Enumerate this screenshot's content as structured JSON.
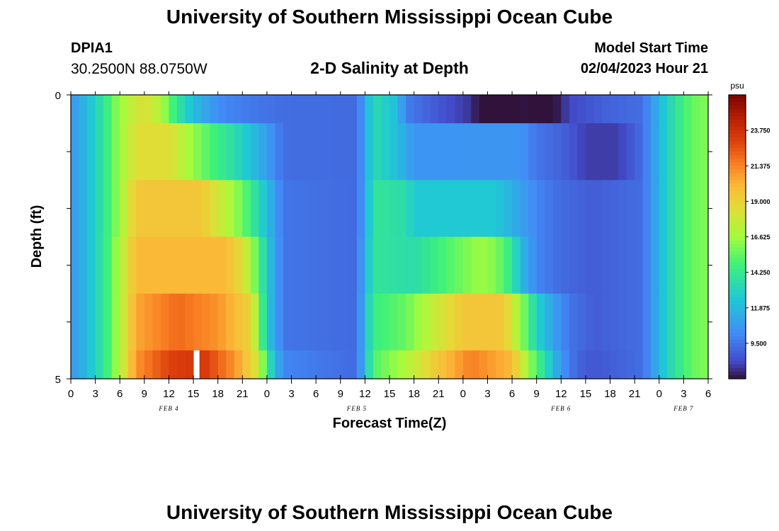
{
  "header": {
    "title": "University of Southern Mississippi Ocean Cube",
    "station_id": "DPIA1",
    "coordinates": "30.2500N  88.0750W",
    "chart_title": "2-D Salinity at Depth",
    "model_start_label": "Model Start Time",
    "model_start_value": "02/04/2023 Hour 21"
  },
  "footer": {
    "title": "University of Southern Mississippi Ocean Cube"
  },
  "chart_data": {
    "type": "heatmap",
    "title": "2-D Salinity at Depth",
    "xlabel": "Forecast Time(Z)",
    "ylabel": "Depth (ft)",
    "x_tick_labels": [
      "0",
      "3",
      "6",
      "9",
      "12",
      "15",
      "18",
      "21",
      "0",
      "3",
      "6",
      "9",
      "12",
      "15",
      "18",
      "21",
      "0",
      "3",
      "6",
      "9",
      "12",
      "15",
      "18",
      "21",
      "0",
      "3",
      "6"
    ],
    "x_hours": [
      0,
      3,
      6,
      9,
      12,
      15,
      18,
      21,
      24,
      27,
      30,
      33,
      36,
      39,
      42,
      45,
      48,
      51,
      54,
      57,
      60,
      63,
      66,
      69,
      72,
      75,
      78
    ],
    "xlim_hours": [
      0,
      78
    ],
    "date_labels": [
      {
        "label": "FEB 4",
        "hour": 12
      },
      {
        "label": "FEB 5",
        "hour": 35
      },
      {
        "label": "FEB 6",
        "hour": 60
      },
      {
        "label": "FEB 7",
        "hour": 75
      }
    ],
    "y_tick_labels": [
      "0",
      "5"
    ],
    "ylim": [
      0,
      5
    ],
    "depth_rows": [
      {
        "depth_range": [
          0,
          0.5
        ],
        "salinity": [
          {
            "h": 0,
            "v": 10.5
          },
          {
            "h": 2,
            "v": 12
          },
          {
            "h": 4,
            "v": 14
          },
          {
            "h": 6,
            "v": 16.5
          },
          {
            "h": 9,
            "v": 18.5
          },
          {
            "h": 11,
            "v": 17
          },
          {
            "h": 13,
            "v": 14
          },
          {
            "h": 15,
            "v": 12
          },
          {
            "h": 18,
            "v": 10.2
          },
          {
            "h": 22,
            "v": 9.6
          },
          {
            "h": 26,
            "v": 9.3
          },
          {
            "h": 35,
            "v": 9.2
          },
          {
            "h": 36,
            "v": 11
          },
          {
            "h": 37,
            "v": 13.5
          },
          {
            "h": 40,
            "v": 12
          },
          {
            "h": 41,
            "v": 9.8
          },
          {
            "h": 45,
            "v": 8.6
          },
          {
            "h": 49,
            "v": 7.8
          },
          {
            "h": 51,
            "v": 6.3
          },
          {
            "h": 52,
            "v": 5.8
          },
          {
            "h": 53,
            "v": 6.5
          },
          {
            "h": 55,
            "v": 7.2
          },
          {
            "h": 59,
            "v": 7
          },
          {
            "h": 61,
            "v": 8.2
          },
          {
            "h": 66,
            "v": 9
          },
          {
            "h": 70,
            "v": 9.3
          },
          {
            "h": 71,
            "v": 10.5
          },
          {
            "h": 73,
            "v": 13
          },
          {
            "h": 76,
            "v": 15.5
          },
          {
            "h": 78,
            "v": 16
          }
        ]
      },
      {
        "depth_range": [
          0.5,
          1.5
        ],
        "salinity": [
          {
            "h": 0,
            "v": 10.5
          },
          {
            "h": 2,
            "v": 12
          },
          {
            "h": 4,
            "v": 14
          },
          {
            "h": 6,
            "v": 16.5
          },
          {
            "h": 8,
            "v": 18.5
          },
          {
            "h": 12,
            "v": 18.5
          },
          {
            "h": 14,
            "v": 17
          },
          {
            "h": 17,
            "v": 15
          },
          {
            "h": 20,
            "v": 13.5
          },
          {
            "h": 23,
            "v": 11.5
          },
          {
            "h": 26,
            "v": 9.3
          },
          {
            "h": 35,
            "v": 9.2
          },
          {
            "h": 36,
            "v": 11
          },
          {
            "h": 37,
            "v": 13.5
          },
          {
            "h": 40,
            "v": 12
          },
          {
            "h": 42,
            "v": 10.5
          },
          {
            "h": 55,
            "v": 10.5
          },
          {
            "h": 57,
            "v": 9.5
          },
          {
            "h": 60,
            "v": 9
          },
          {
            "h": 63,
            "v": 8
          },
          {
            "h": 67,
            "v": 8
          },
          {
            "h": 70,
            "v": 9.3
          },
          {
            "h": 71,
            "v": 10.5
          },
          {
            "h": 73,
            "v": 13
          },
          {
            "h": 76,
            "v": 15.5
          },
          {
            "h": 78,
            "v": 16
          }
        ]
      },
      {
        "depth_range": [
          1.5,
          2.5
        ],
        "salinity": [
          {
            "h": 0,
            "v": 10.5
          },
          {
            "h": 2,
            "v": 12
          },
          {
            "h": 4,
            "v": 14
          },
          {
            "h": 6,
            "v": 16.5
          },
          {
            "h": 8,
            "v": 19.5
          },
          {
            "h": 16,
            "v": 19.5
          },
          {
            "h": 18,
            "v": 18
          },
          {
            "h": 20,
            "v": 16.5
          },
          {
            "h": 22,
            "v": 14.5
          },
          {
            "h": 24,
            "v": 12
          },
          {
            "h": 26,
            "v": 9.5
          },
          {
            "h": 35,
            "v": 9.2
          },
          {
            "h": 36,
            "v": 11
          },
          {
            "h": 37,
            "v": 14
          },
          {
            "h": 41,
            "v": 13.5
          },
          {
            "h": 42,
            "v": 12.5
          },
          {
            "h": 52,
            "v": 12.5
          },
          {
            "h": 55,
            "v": 11
          },
          {
            "h": 57,
            "v": 10
          },
          {
            "h": 60,
            "v": 9.2
          },
          {
            "h": 64,
            "v": 8.8
          },
          {
            "h": 70,
            "v": 9.3
          },
          {
            "h": 71,
            "v": 10.5
          },
          {
            "h": 73,
            "v": 13
          },
          {
            "h": 76,
            "v": 15.5
          },
          {
            "h": 78,
            "v": 16
          }
        ]
      },
      {
        "depth_range": [
          2.5,
          3.5
        ],
        "salinity": [
          {
            "h": 0,
            "v": 10.5
          },
          {
            "h": 2,
            "v": 12
          },
          {
            "h": 4,
            "v": 14
          },
          {
            "h": 6,
            "v": 17
          },
          {
            "h": 8,
            "v": 20
          },
          {
            "h": 19,
            "v": 20
          },
          {
            "h": 21,
            "v": 18.5
          },
          {
            "h": 23,
            "v": 15
          },
          {
            "h": 24,
            "v": 12.5
          },
          {
            "h": 26,
            "v": 9.5
          },
          {
            "h": 35,
            "v": 9.2
          },
          {
            "h": 36,
            "v": 11.5
          },
          {
            "h": 37,
            "v": 14
          },
          {
            "h": 42,
            "v": 13.5
          },
          {
            "h": 46,
            "v": 15
          },
          {
            "h": 50,
            "v": 16.5
          },
          {
            "h": 52,
            "v": 16
          },
          {
            "h": 54,
            "v": 14
          },
          {
            "h": 55,
            "v": 12
          },
          {
            "h": 57,
            "v": 10
          },
          {
            "h": 60,
            "v": 9.2
          },
          {
            "h": 64,
            "v": 8.8
          },
          {
            "h": 70,
            "v": 9.3
          },
          {
            "h": 71,
            "v": 10.5
          },
          {
            "h": 73,
            "v": 13
          },
          {
            "h": 76,
            "v": 15.5
          },
          {
            "h": 78,
            "v": 16
          }
        ]
      },
      {
        "depth_range": [
          3.5,
          4.5
        ],
        "salinity": [
          {
            "h": 0,
            "v": 10.5
          },
          {
            "h": 2,
            "v": 12
          },
          {
            "h": 4,
            "v": 14
          },
          {
            "h": 6,
            "v": 17
          },
          {
            "h": 8,
            "v": 20.5
          },
          {
            "h": 13,
            "v": 22
          },
          {
            "h": 18,
            "v": 21
          },
          {
            "h": 22,
            "v": 19
          },
          {
            "h": 23,
            "v": 16
          },
          {
            "h": 24,
            "v": 12.5
          },
          {
            "h": 26,
            "v": 9.5
          },
          {
            "h": 35,
            "v": 9.2
          },
          {
            "h": 36,
            "v": 12
          },
          {
            "h": 37,
            "v": 14.5
          },
          {
            "h": 41,
            "v": 15.5
          },
          {
            "h": 45,
            "v": 18
          },
          {
            "h": 48,
            "v": 19.5
          },
          {
            "h": 53,
            "v": 19.5
          },
          {
            "h": 55,
            "v": 16.5
          },
          {
            "h": 57,
            "v": 13
          },
          {
            "h": 59,
            "v": 11
          },
          {
            "h": 61,
            "v": 9.5
          },
          {
            "h": 64,
            "v": 8.8
          },
          {
            "h": 70,
            "v": 9.3
          },
          {
            "h": 71,
            "v": 10.5
          },
          {
            "h": 73,
            "v": 13
          },
          {
            "h": 76,
            "v": 15.5
          },
          {
            "h": 78,
            "v": 16
          }
        ]
      },
      {
        "depth_range": [
          4.5,
          5
        ],
        "salinity": [
          {
            "h": 0,
            "v": 10.5
          },
          {
            "h": 2,
            "v": 12
          },
          {
            "h": 4,
            "v": 14
          },
          {
            "h": 6,
            "v": 17
          },
          {
            "h": 8,
            "v": 21
          },
          {
            "h": 12,
            "v": 23
          },
          {
            "h": 16,
            "v": 23.5
          },
          {
            "h": 20,
            "v": 21
          },
          {
            "h": 23,
            "v": 18
          },
          {
            "h": 24,
            "v": 14
          },
          {
            "h": 26,
            "v": 10
          },
          {
            "h": 35,
            "v": 9.2
          },
          {
            "h": 36,
            "v": 12
          },
          {
            "h": 37,
            "v": 15
          },
          {
            "h": 41,
            "v": 17
          },
          {
            "h": 45,
            "v": 19.5
          },
          {
            "h": 49,
            "v": 21.5
          },
          {
            "h": 54,
            "v": 20
          },
          {
            "h": 56,
            "v": 16.5
          },
          {
            "h": 58,
            "v": 13.5
          },
          {
            "h": 60,
            "v": 10.5
          },
          {
            "h": 62,
            "v": 9
          },
          {
            "h": 64,
            "v": 8.6
          },
          {
            "h": 70,
            "v": 9.3
          },
          {
            "h": 71,
            "v": 10.5
          },
          {
            "h": 73,
            "v": 13
          },
          {
            "h": 76,
            "v": 15.5
          },
          {
            "h": 78,
            "v": 16
          }
        ]
      }
    ],
    "missing_cells": [
      {
        "hour": 15,
        "depth_range": [
          4.5,
          5
        ]
      }
    ],
    "colorbar": {
      "unit": "psu",
      "range": [
        7.125,
        26.125
      ],
      "tick_labels": [
        "9.500",
        "11.875",
        "14.250",
        "16.625",
        "19.000",
        "21.375",
        "23.750"
      ],
      "tick_values": [
        9.5,
        11.875,
        14.25,
        16.625,
        19.0,
        21.375,
        23.75
      ]
    }
  }
}
